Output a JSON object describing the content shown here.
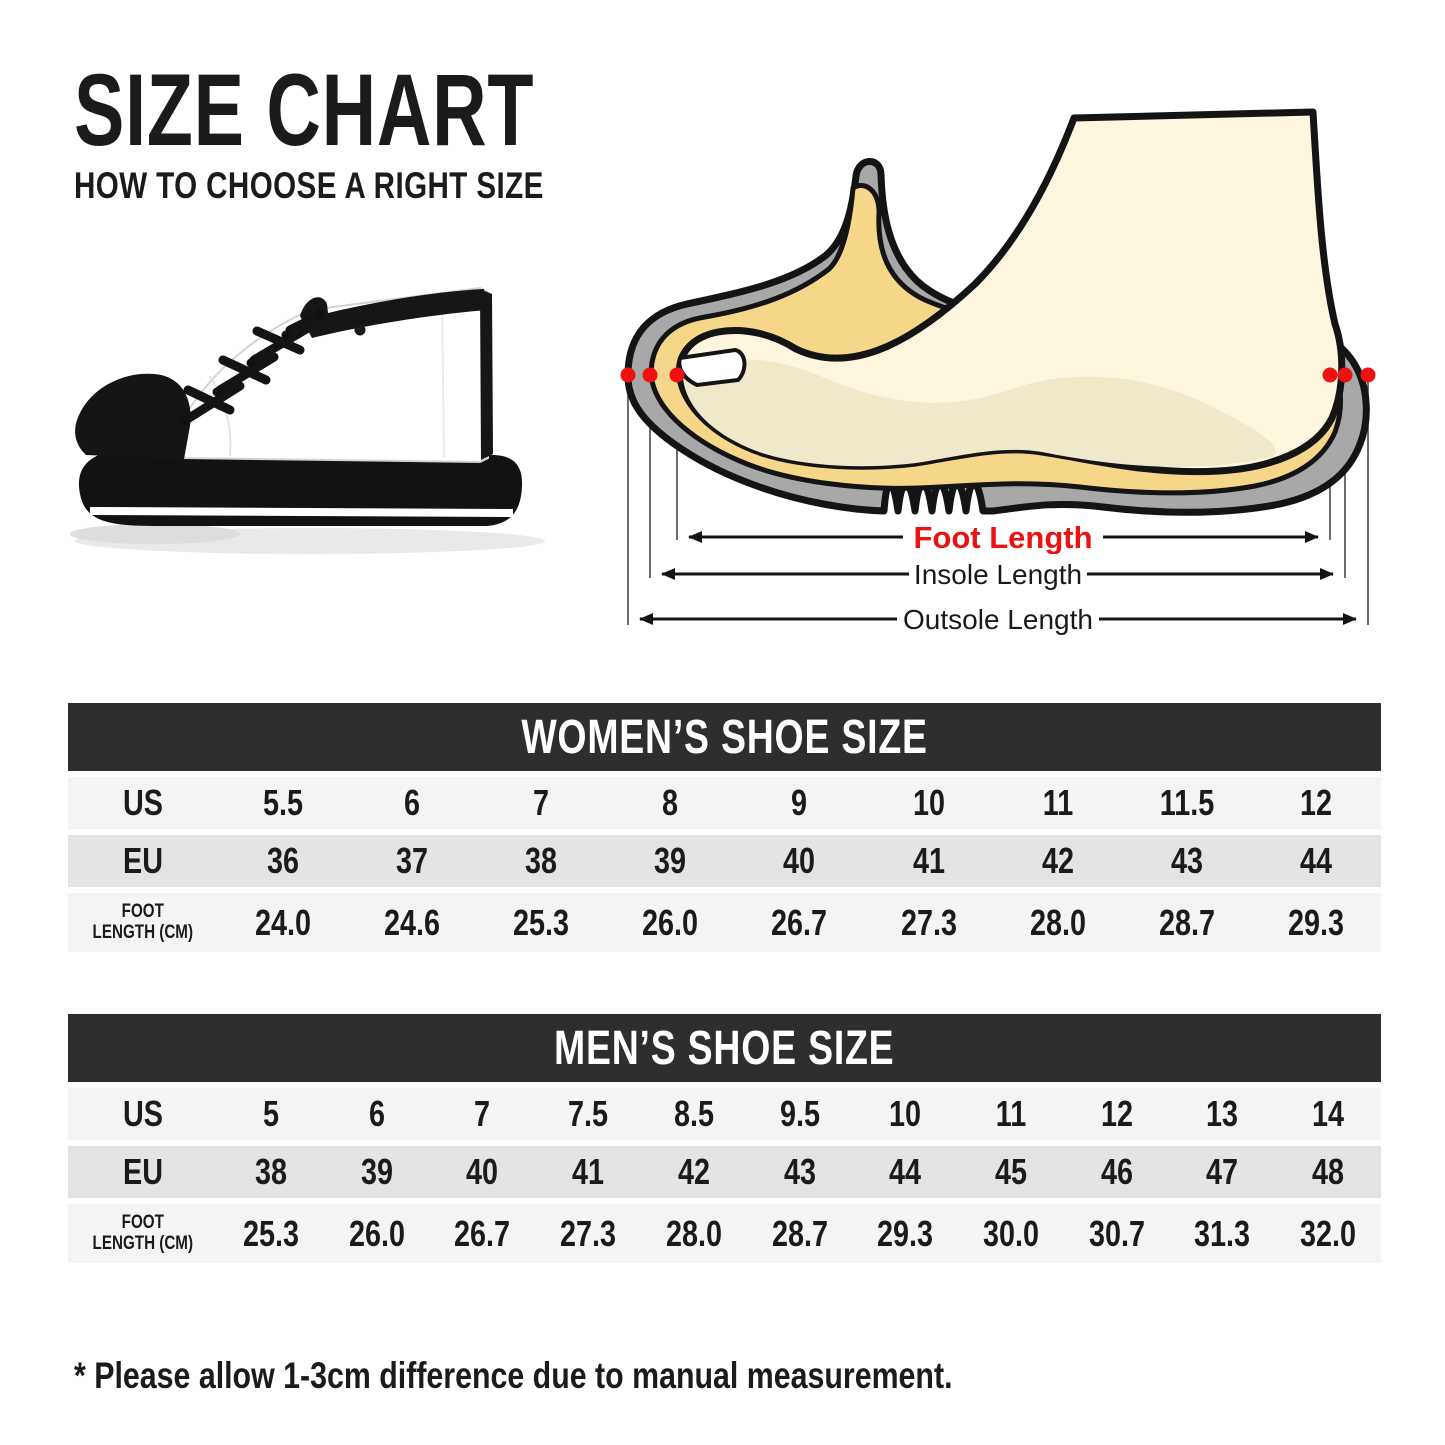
{
  "page": {
    "title": "SIZE CHART",
    "subtitle": "HOW TO CHOOSE A RIGHT SIZE",
    "footnote": "* Please allow 1-3cm difference due to manual measurement."
  },
  "diagram": {
    "foot_length_label": "Foot Length",
    "insole_length_label": "Insole Length",
    "outsole_length_label": "Outsole Length",
    "colors": {
      "foot_length_label": "#ee1111",
      "measure_dot": "#ee1111",
      "shoe_gray": "#a8a8a8",
      "insole_yellow": "#f6d78a",
      "foot_cream": "#fbf6dd",
      "outline_black": "#141414"
    }
  },
  "tables": [
    {
      "title": "WOMEN’S SHOE SIZE",
      "rows": [
        {
          "key": "us",
          "label": "US",
          "label_lines": [
            "US"
          ],
          "values": [
            "5.5",
            "6",
            "7",
            "8",
            "9",
            "10",
            "11",
            "11.5",
            "12"
          ]
        },
        {
          "key": "eu",
          "label": "EU",
          "label_lines": [
            "EU"
          ],
          "values": [
            "36",
            "37",
            "38",
            "39",
            "40",
            "41",
            "42",
            "43",
            "44"
          ]
        },
        {
          "key": "foot-length-cm",
          "label": "FOOT LENGTH (CM)",
          "label_lines": [
            "FOOT",
            "LENGTH (CM)"
          ],
          "values": [
            "24.0",
            "24.6",
            "25.3",
            "26.0",
            "26.7",
            "27.3",
            "28.0",
            "28.7",
            "29.3"
          ]
        }
      ]
    },
    {
      "title": "MEN’S SHOE SIZE",
      "rows": [
        {
          "key": "us",
          "label": "US",
          "label_lines": [
            "US"
          ],
          "values": [
            "5",
            "6",
            "7",
            "7.5",
            "8.5",
            "9.5",
            "10",
            "11",
            "12",
            "13",
            "14"
          ]
        },
        {
          "key": "eu",
          "label": "EU",
          "label_lines": [
            "EU"
          ],
          "values": [
            "38",
            "39",
            "40",
            "41",
            "42",
            "43",
            "44",
            "45",
            "46",
            "47",
            "48"
          ]
        },
        {
          "key": "foot-length-cm",
          "label": "FOOT LENGTH (CM)",
          "label_lines": [
            "FOOT",
            "LENGTH (CM)"
          ],
          "values": [
            "25.3",
            "26.0",
            "26.7",
            "27.3",
            "28.0",
            "28.7",
            "29.3",
            "30.0",
            "30.7",
            "31.3",
            "32.0"
          ]
        }
      ]
    }
  ]
}
